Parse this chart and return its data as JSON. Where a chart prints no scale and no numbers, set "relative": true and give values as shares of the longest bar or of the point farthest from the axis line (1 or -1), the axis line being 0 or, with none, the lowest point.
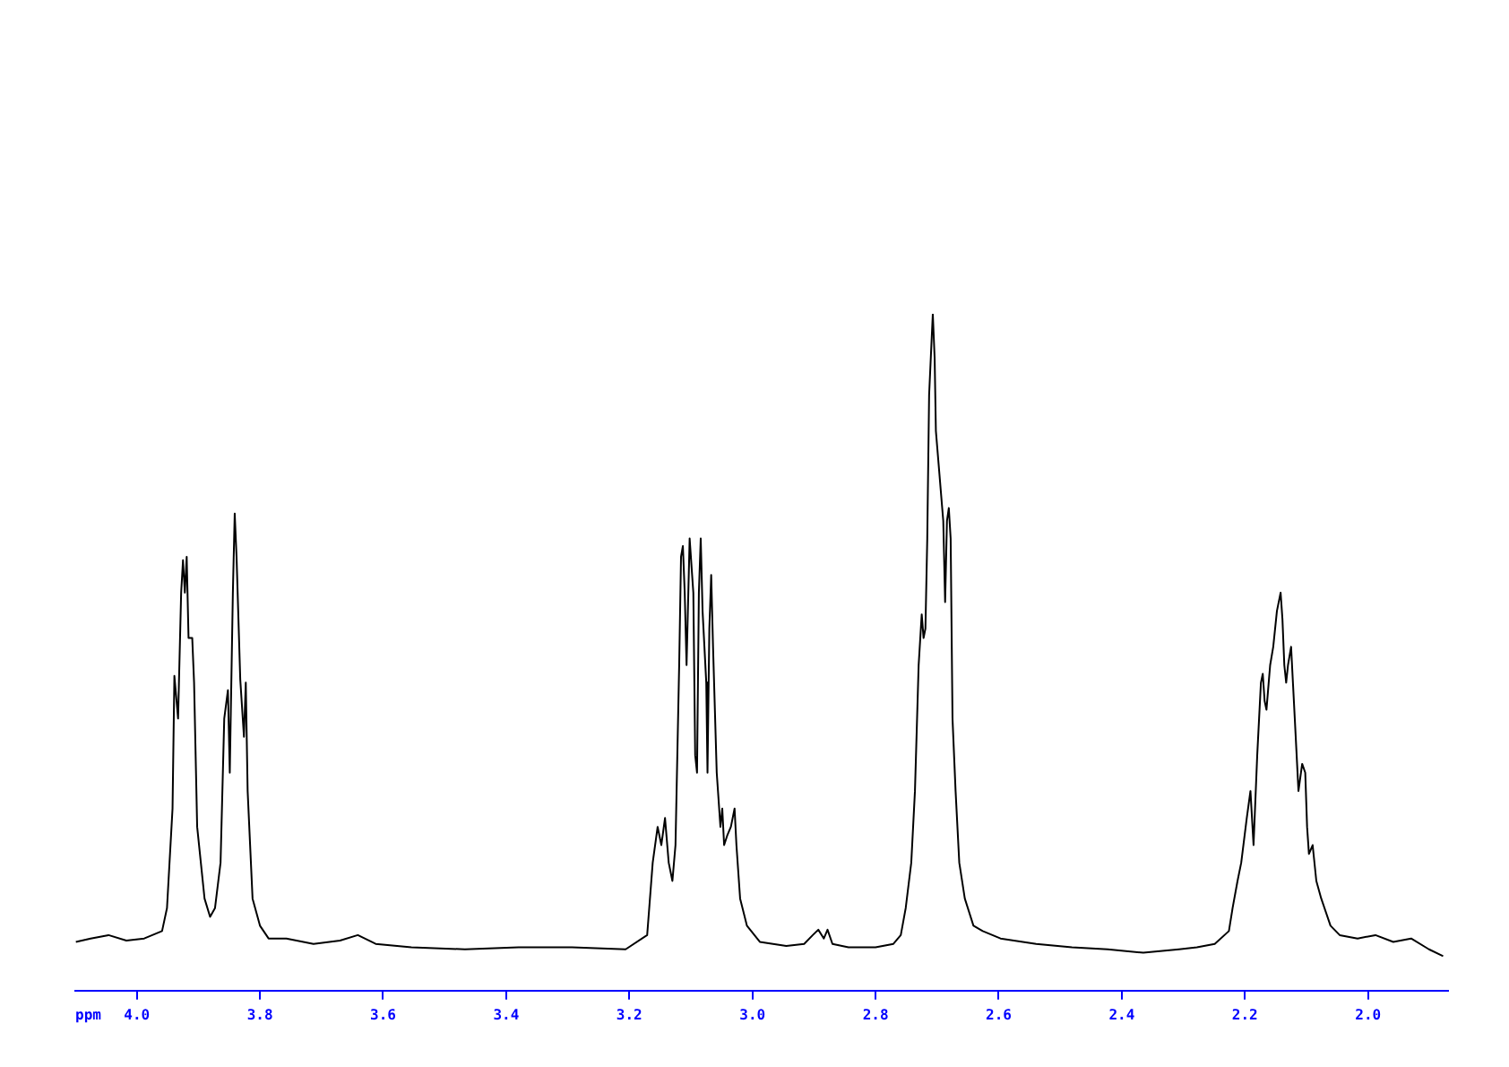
{
  "chart_data": {
    "type": "line",
    "xlabel": "ppm",
    "relative": true,
    "xlim": [
      4.1,
      1.87
    ],
    "xticks": [
      {
        "value": 4,
        "label": "4.0"
      },
      3.8,
      3.6,
      3.4,
      3.2,
      {
        "value": 3,
        "label": "3.0"
      },
      2.8,
      2.6,
      2.4,
      2.2,
      {
        "value": 2,
        "label": "2.0"
      }
    ],
    "marker": "none",
    "series": [
      {
        "color": "#000000",
        "x": [
          4.099,
          4.075,
          4.046,
          4.017,
          3.988,
          3.959,
          3.951,
          3.942,
          3.939,
          3.933,
          3.928,
          3.925,
          3.922,
          3.919,
          3.916,
          3.91,
          3.907,
          3.902,
          3.89,
          3.881,
          3.873,
          3.864,
          3.858,
          3.852,
          3.849,
          3.844,
          3.841,
          3.838,
          3.832,
          3.826,
          3.823,
          3.82,
          3.812,
          3.8,
          3.786,
          3.757,
          3.713,
          3.67,
          3.641,
          3.612,
          3.554,
          3.467,
          3.38,
          3.293,
          3.206,
          3.171,
          3.162,
          3.154,
          3.148,
          3.142,
          3.136,
          3.13,
          3.125,
          3.119,
          3.116,
          3.113,
          3.11,
          3.107,
          3.102,
          3.096,
          3.093,
          3.09,
          3.087,
          3.084,
          3.081,
          3.075,
          3.073,
          3.07,
          3.067,
          3.064,
          3.058,
          3.052,
          3.049,
          3.046,
          3.041,
          3.035,
          3.029,
          3.026,
          3.02,
          3.009,
          2.988,
          2.945,
          2.916,
          2.902,
          2.893,
          2.884,
          2.878,
          2.87,
          2.844,
          2.8,
          2.771,
          2.759,
          2.751,
          2.742,
          2.736,
          2.73,
          2.725,
          2.722,
          2.719,
          2.716,
          2.713,
          2.707,
          2.704,
          2.702,
          2.69,
          2.687,
          2.684,
          2.681,
          2.678,
          2.675,
          2.67,
          2.664,
          2.655,
          2.641,
          2.626,
          2.597,
          2.539,
          2.481,
          2.423,
          2.365,
          2.307,
          2.278,
          2.249,
          2.226,
          2.22,
          2.212,
          2.206,
          2.197,
          2.191,
          2.186,
          2.18,
          2.174,
          2.171,
          2.168,
          2.165,
          2.159,
          2.154,
          2.148,
          2.142,
          2.139,
          2.136,
          2.133,
          2.13,
          2.125,
          2.119,
          2.113,
          2.107,
          2.102,
          2.099,
          2.096,
          2.09,
          2.084,
          2.076,
          2.061,
          2.046,
          2.017,
          1.988,
          1.959,
          1.93,
          1.901,
          1.878
        ],
        "values": [
          0.072,
          0.077,
          0.082,
          0.074,
          0.077,
          0.088,
          0.122,
          0.269,
          0.465,
          0.402,
          0.588,
          0.636,
          0.588,
          0.641,
          0.521,
          0.521,
          0.455,
          0.242,
          0.136,
          0.109,
          0.122,
          0.189,
          0.402,
          0.444,
          0.322,
          0.588,
          0.705,
          0.641,
          0.46,
          0.375,
          0.455,
          0.295,
          0.136,
          0.096,
          0.077,
          0.077,
          0.069,
          0.074,
          0.082,
          0.069,
          0.064,
          0.061,
          0.064,
          0.064,
          0.061,
          0.082,
          0.189,
          0.242,
          0.215,
          0.255,
          0.189,
          0.162,
          0.215,
          0.481,
          0.641,
          0.657,
          0.588,
          0.481,
          0.668,
          0.588,
          0.348,
          0.322,
          0.588,
          0.668,
          0.561,
          0.455,
          0.322,
          0.535,
          0.614,
          0.508,
          0.322,
          0.242,
          0.269,
          0.215,
          0.229,
          0.242,
          0.269,
          0.215,
          0.136,
          0.096,
          0.072,
          0.066,
          0.069,
          0.082,
          0.09,
          0.077,
          0.09,
          0.069,
          0.064,
          0.064,
          0.069,
          0.082,
          0.122,
          0.189,
          0.295,
          0.481,
          0.556,
          0.521,
          0.535,
          0.668,
          0.88,
          1,
          0.934,
          0.827,
          0.694,
          0.574,
          0.694,
          0.713,
          0.668,
          0.402,
          0.295,
          0.189,
          0.136,
          0.096,
          0.088,
          0.077,
          0.069,
          0.064,
          0.061,
          0.056,
          0.061,
          0.064,
          0.069,
          0.088,
          0.122,
          0.162,
          0.189,
          0.255,
          0.295,
          0.215,
          0.348,
          0.455,
          0.468,
          0.428,
          0.415,
          0.481,
          0.508,
          0.561,
          0.588,
          0.548,
          0.481,
          0.455,
          0.481,
          0.508,
          0.402,
          0.295,
          0.335,
          0.322,
          0.242,
          0.202,
          0.215,
          0.162,
          0.136,
          0.096,
          0.082,
          0.077,
          0.082,
          0.072,
          0.077,
          0.061,
          0.051
        ]
      }
    ]
  }
}
